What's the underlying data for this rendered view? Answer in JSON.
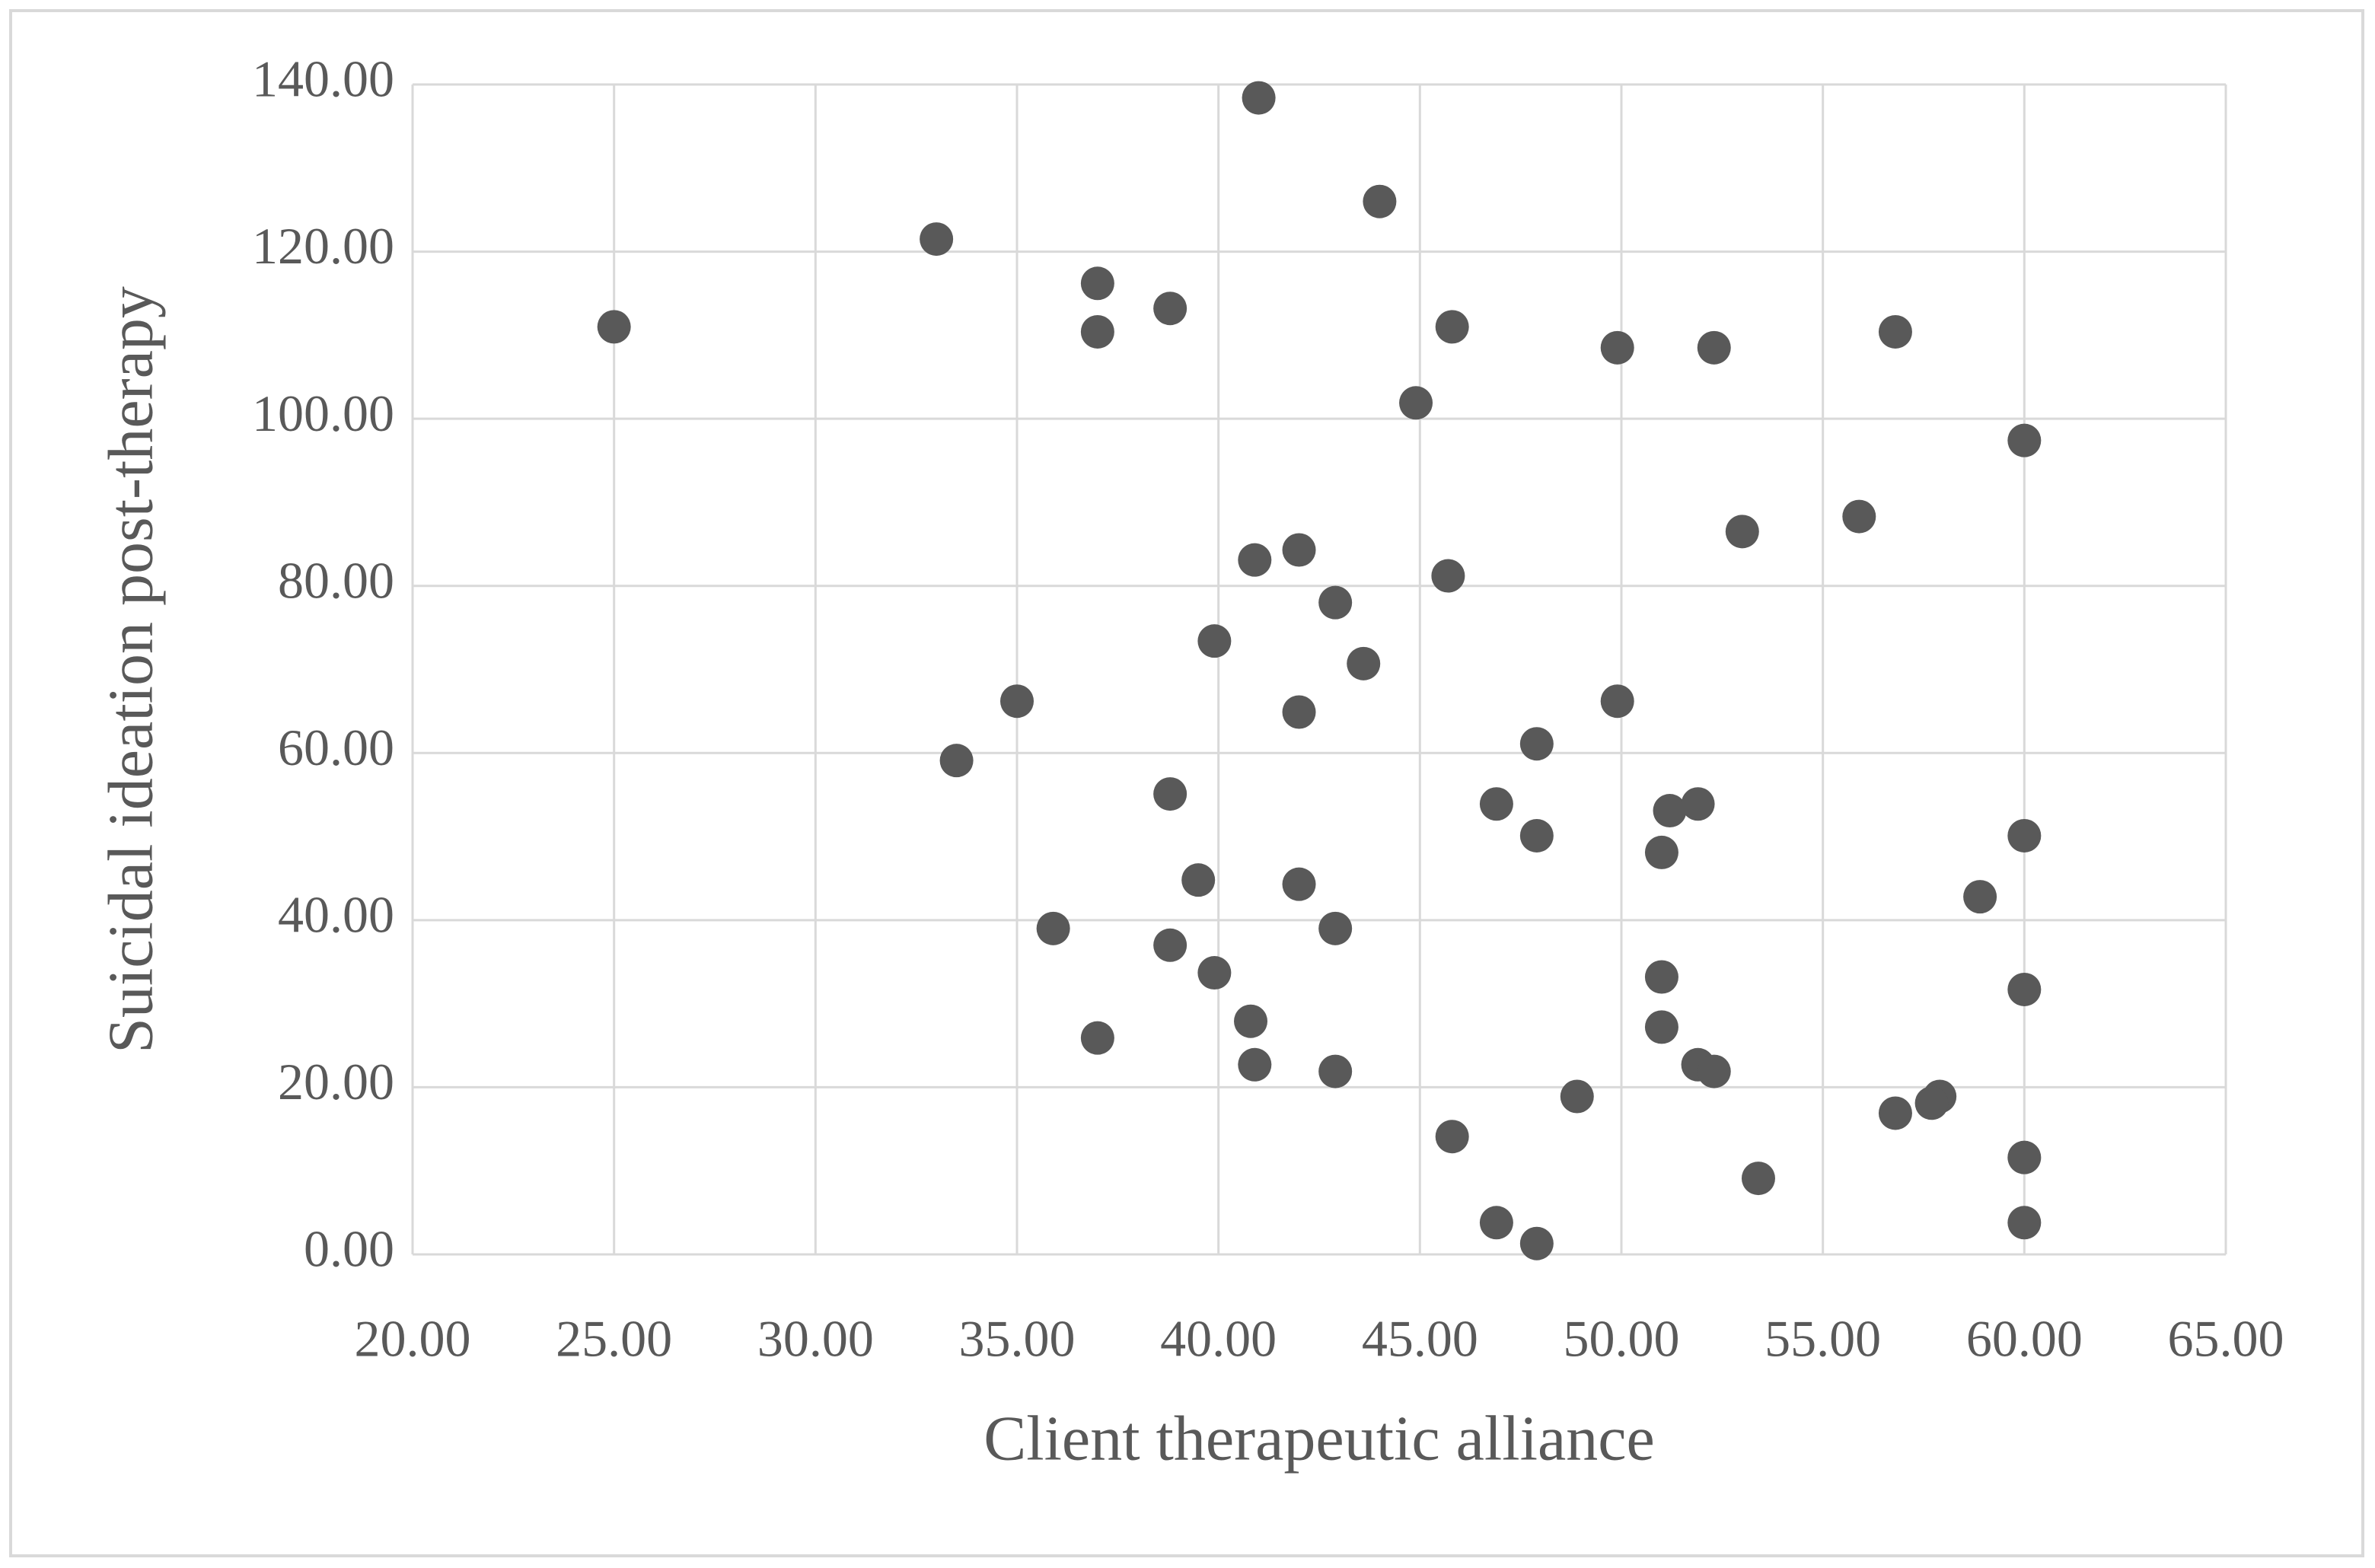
{
  "chart_data": {
    "type": "scatter",
    "x_label": "Client therapeutic alliance",
    "y_label": "Suicidal ideation post-therapy",
    "color": "#595959",
    "grid": true,
    "xlim": [
      20,
      65
    ],
    "ylim": [
      0,
      140
    ],
    "xticks": [
      {
        "value": 20,
        "label": "20.00"
      },
      {
        "value": 25,
        "label": "25.00"
      },
      {
        "value": 30,
        "label": "30.00"
      },
      {
        "value": 35,
        "label": "35.00"
      },
      {
        "value": 40,
        "label": "40.00"
      },
      {
        "value": 45,
        "label": "45.00"
      },
      {
        "value": 50,
        "label": "50.00"
      },
      {
        "value": 55,
        "label": "55.00"
      },
      {
        "value": 60,
        "label": "60.00"
      },
      {
        "value": 65,
        "label": "65.00"
      }
    ],
    "yticks": [
      {
        "value": 0,
        "label": "0.00"
      },
      {
        "value": 20,
        "label": "20.00"
      },
      {
        "value": 40,
        "label": "40.00"
      },
      {
        "value": 60,
        "label": "60.00"
      },
      {
        "value": 80,
        "label": "80.00"
      },
      {
        "value": 100,
        "label": "100.00"
      },
      {
        "value": 120,
        "label": "120.00"
      },
      {
        "value": 140,
        "label": "140.00"
      }
    ],
    "x": [
      25,
      33,
      41,
      44,
      37,
      37,
      38.8,
      45.8,
      49.9,
      52.3,
      56.8,
      44.9,
      60,
      55.9,
      53,
      42,
      40.9,
      45.7,
      42.9,
      39.9,
      43.6,
      35,
      49.9,
      42,
      47.9,
      33.5,
      38.8,
      46.9,
      51.2,
      51.9,
      47.9,
      60,
      51,
      39.5,
      42,
      58.9,
      35.9,
      42.9,
      38.8,
      39.9,
      51,
      60,
      40.8,
      51,
      37,
      40.9,
      42.9,
      51.9,
      52.3,
      48.9,
      57.9,
      57.7,
      56.8,
      45.8,
      60,
      53.4,
      46.9,
      60,
      47.9
    ],
    "y": [
      111.0,
      121.5,
      138.4,
      126.0,
      116.2,
      110.4,
      113.2,
      111.0,
      108.5,
      108.5,
      110.4,
      101.9,
      97.4,
      88.3,
      86.5,
      84.3,
      83.1,
      81.2,
      78.0,
      73.4,
      70.7,
      66.2,
      66.2,
      64.9,
      61.1,
      59.1,
      55.1,
      53.9,
      53.1,
      53.9,
      50.1,
      50.1,
      48.1,
      44.8,
      44.3,
      42.8,
      39.0,
      39.0,
      37.0,
      33.7,
      33.2,
      31.7,
      27.9,
      27.2,
      25.9,
      22.7,
      21.9,
      22.7,
      21.9,
      18.9,
      18.9,
      18.1,
      16.9,
      14.1,
      11.6,
      9.1,
      3.8,
      3.8,
      1.3
    ]
  }
}
